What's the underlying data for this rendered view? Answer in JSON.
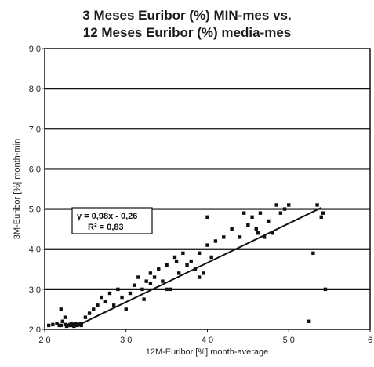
{
  "chart_data": {
    "type": "scatter",
    "title": "3 Meses Euribor (%) MIN-mes vs.",
    "subtitle": "12 Meses Euribor (%) media-mes",
    "xlabel": "12M-Euribor [%]  month-average",
    "ylabel": "3M-Euribor [%]  month-min",
    "xlim": [
      2,
      6
    ],
    "ylim": [
      2,
      9
    ],
    "x_ticks": [
      "2 0",
      "3 0",
      "4 0",
      "5 0",
      "6"
    ],
    "y_ticks": [
      "2 0",
      "3 0",
      "4 0",
      "5 0",
      "6 0",
      "7 0",
      "8 0",
      "9 0"
    ],
    "grid": "horizontal",
    "series": [
      {
        "x": [
          2.05,
          2.1,
          2.15,
          2.18,
          2.2,
          2.22,
          2.25,
          2.27,
          2.3,
          2.31,
          2.32,
          2.33,
          2.34,
          2.35,
          2.36,
          2.37,
          2.38,
          2.4,
          2.42,
          2.44,
          2.45,
          2.2,
          2.25,
          2.5,
          2.55,
          2.6,
          2.65,
          2.7,
          2.75,
          2.8,
          2.85,
          2.9,
          2.95,
          3.0,
          3.05,
          3.1,
          3.15,
          3.2,
          3.25,
          3.3,
          3.35,
          3.4,
          3.45,
          3.5,
          3.55,
          3.6,
          3.65,
          3.7,
          3.75,
          3.8,
          3.85,
          3.9,
          3.95,
          4.0,
          4.05,
          4.1,
          4.2,
          4.3,
          4.4,
          4.5,
          4.55,
          4.6,
          4.65,
          4.7,
          4.75,
          4.8,
          4.85,
          4.9,
          4.95,
          5.0,
          5.3,
          5.35,
          5.4,
          5.42,
          5.45,
          5.25,
          3.22,
          3.5,
          3.62,
          3.9,
          4.62,
          4.45,
          4.0,
          3.3
        ],
        "y": [
          2.1,
          2.12,
          2.15,
          2.1,
          2.1,
          2.2,
          2.12,
          2.08,
          2.1,
          2.12,
          2.1,
          2.15,
          2.1,
          2.12,
          2.08,
          2.1,
          2.15,
          2.1,
          2.12,
          2.15,
          2.1,
          2.5,
          2.3,
          2.3,
          2.4,
          2.5,
          2.6,
          2.8,
          2.7,
          2.9,
          2.6,
          3.0,
          2.8,
          2.5,
          2.9,
          3.1,
          3.3,
          3.0,
          3.2,
          3.4,
          3.3,
          3.5,
          3.2,
          3.6,
          3.0,
          3.8,
          3.4,
          3.9,
          3.6,
          3.7,
          3.5,
          3.9,
          3.4,
          4.1,
          3.8,
          4.2,
          4.3,
          4.5,
          4.3,
          4.6,
          4.8,
          4.5,
          4.9,
          4.3,
          4.7,
          4.4,
          5.1,
          4.9,
          5.0,
          5.1,
          3.9,
          5.1,
          4.8,
          4.9,
          3.0,
          2.2,
          2.75,
          3.0,
          3.7,
          3.3,
          4.4,
          4.9,
          4.8,
          3.15
        ]
      }
    ],
    "trendline": {
      "slope": 0.98,
      "intercept": -0.26,
      "x_range": [
        2.4,
        5.4
      ]
    },
    "annotation": {
      "equation": "y = 0,98x - 0,26",
      "r2": "R² = 0,83"
    }
  }
}
